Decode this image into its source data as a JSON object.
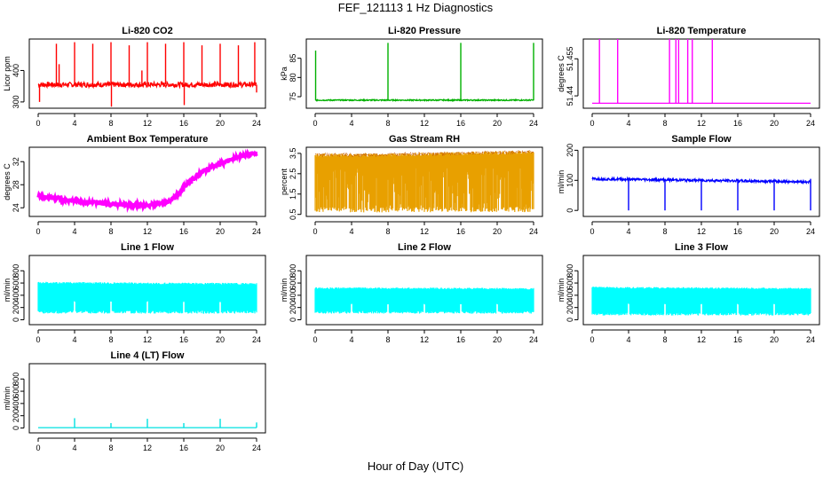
{
  "figure": {
    "title": "FEF_121113  1 Hz Diagnostics",
    "xlabel": "Hour of Day (UTC)"
  },
  "chart_data": [
    {
      "type": "line",
      "title": "Li-820 CO2",
      "ylabel": "Licor ppm",
      "color": "#ff0000",
      "xlim": [
        0,
        24
      ],
      "ylim": [
        280,
        500
      ],
      "xticks": [
        0,
        4,
        8,
        12,
        16,
        20,
        24
      ],
      "yticks": [
        300,
        400
      ],
      "baseline": 355,
      "noise": 8,
      "spikes": [
        {
          "x": 0.15,
          "y": 300
        },
        {
          "x": 2.0,
          "y": 485
        },
        {
          "x": 2.3,
          "y": 420
        },
        {
          "x": 4.0,
          "y": 490
        },
        {
          "x": 6.0,
          "y": 485
        },
        {
          "x": 8.0,
          "y": 490
        },
        {
          "x": 8.05,
          "y": 285
        },
        {
          "x": 10.0,
          "y": 480
        },
        {
          "x": 11.4,
          "y": 400
        },
        {
          "x": 12.0,
          "y": 490
        },
        {
          "x": 14.0,
          "y": 485
        },
        {
          "x": 16.0,
          "y": 490
        },
        {
          "x": 16.05,
          "y": 290
        },
        {
          "x": 18.0,
          "y": 480
        },
        {
          "x": 20.0,
          "y": 485
        },
        {
          "x": 22.0,
          "y": 480
        },
        {
          "x": 23.8,
          "y": 490
        },
        {
          "x": 24.0,
          "y": 330
        }
      ]
    },
    {
      "type": "line",
      "title": "Li-820 Pressure",
      "ylabel": "kPa",
      "color": "#00b000",
      "xlim": [
        0,
        24
      ],
      "ylim": [
        72,
        90
      ],
      "xticks": [
        0,
        4,
        8,
        12,
        16,
        20,
        24
      ],
      "yticks": [
        75,
        80,
        85
      ],
      "baseline": 74.1,
      "noise": 0.15,
      "spikes": [
        {
          "x": 0.05,
          "y": 87
        },
        {
          "x": 8.0,
          "y": 89
        },
        {
          "x": 16.0,
          "y": 89
        },
        {
          "x": 24.0,
          "y": 89
        }
      ]
    },
    {
      "type": "line",
      "title": "Li-820 Temperature",
      "ylabel": "degrees C",
      "color": "#ff00ff",
      "xlim": [
        0,
        24
      ],
      "ylim": [
        51.435,
        51.463
      ],
      "xticks": [
        0,
        4,
        8,
        12,
        16,
        20,
        24
      ],
      "yticks": [
        51.44,
        51.455
      ],
      "baseline": 51.437,
      "noise": 0,
      "spikes": [
        {
          "x": 0.8,
          "y": 51.463
        },
        {
          "x": 2.8,
          "y": 51.463
        },
        {
          "x": 8.5,
          "y": 51.463
        },
        {
          "x": 9.2,
          "y": 51.463
        },
        {
          "x": 9.5,
          "y": 51.463
        },
        {
          "x": 10.5,
          "y": 51.463
        },
        {
          "x": 11.0,
          "y": 51.463
        },
        {
          "x": 13.2,
          "y": 51.463
        }
      ]
    },
    {
      "type": "line",
      "title": "Ambient Box Temperature",
      "ylabel": "degrees C",
      "color": "#ff00ff",
      "xlim": [
        0,
        24
      ],
      "ylim": [
        22.5,
        34.5
      ],
      "xticks": [
        0,
        4,
        8,
        12,
        16,
        20,
        24
      ],
      "yticks": [
        24,
        28,
        32
      ],
      "noise": 0.35,
      "points": [
        [
          0,
          26.0
        ],
        [
          2,
          25.6
        ],
        [
          4,
          25.2
        ],
        [
          6,
          24.9
        ],
        [
          8,
          24.7
        ],
        [
          10,
          24.5
        ],
        [
          12,
          24.4
        ],
        [
          14,
          24.8
        ],
        [
          15,
          25.8
        ],
        [
          16,
          27.5
        ],
        [
          17,
          29.0
        ],
        [
          18,
          30.2
        ],
        [
          19,
          31.0
        ],
        [
          20,
          31.6
        ],
        [
          21,
          32.2
        ],
        [
          22,
          32.8
        ],
        [
          23,
          33.2
        ],
        [
          24,
          33.4
        ]
      ]
    },
    {
      "type": "band",
      "title": "Gas Stream RH",
      "ylabel": "percent",
      "color": "#e8a000",
      "edge_color": "#c05000",
      "xlim": [
        0,
        24
      ],
      "ylim": [
        0.4,
        3.8
      ],
      "xticks": [
        0,
        4,
        8,
        12,
        16,
        20,
        24
      ],
      "yticks": [
        0.5,
        1.5,
        2.5,
        3.5
      ],
      "upper": [
        [
          0,
          3.5
        ],
        [
          6,
          3.5
        ],
        [
          12,
          3.55
        ],
        [
          18,
          3.6
        ],
        [
          24,
          3.65
        ]
      ],
      "lower": 0.6
    },
    {
      "type": "line",
      "title": "Sample Flow",
      "ylabel": "ml/min",
      "color": "#0000ff",
      "xlim": [
        0,
        24
      ],
      "ylim": [
        -20,
        210
      ],
      "xticks": [
        0,
        4,
        8,
        12,
        16,
        20,
        24
      ],
      "yticks": [
        0,
        100,
        200
      ],
      "baseline": 105,
      "noise": 4,
      "drift_end": 95,
      "spikes": [
        {
          "x": 4.0,
          "y": 0
        },
        {
          "x": 8.0,
          "y": 0
        },
        {
          "x": 12.0,
          "y": 0
        },
        {
          "x": 16.0,
          "y": 0
        },
        {
          "x": 20.0,
          "y": 0
        },
        {
          "x": 24.0,
          "y": 0
        }
      ]
    },
    {
      "type": "band",
      "title": "Line 1 Flow",
      "ylabel": "ml/min",
      "color": "#00ffff",
      "xlim": [
        0,
        24
      ],
      "ylim": [
        -80,
        1050
      ],
      "xticks": [
        0,
        4,
        8,
        12,
        16,
        20,
        24
      ],
      "yticks": [
        0,
        200,
        400,
        600,
        800
      ],
      "upper": [
        [
          0,
          620
        ],
        [
          24,
          600
        ]
      ],
      "lower": 100,
      "gaps": [
        4,
        8,
        12,
        16,
        20
      ]
    },
    {
      "type": "band",
      "title": "Line 2 Flow",
      "ylabel": "ml/min",
      "color": "#00ffff",
      "xlim": [
        0,
        24
      ],
      "ylim": [
        -80,
        1050
      ],
      "xticks": [
        0,
        4,
        8,
        12,
        16,
        20,
        24
      ],
      "yticks": [
        0,
        200,
        400,
        600,
        800
      ],
      "upper": [
        [
          0,
          530
        ],
        [
          24,
          520
        ]
      ],
      "lower": 100,
      "gaps": [
        4,
        8,
        12,
        16,
        20
      ]
    },
    {
      "type": "band",
      "title": "Line 3 Flow",
      "ylabel": "ml/min",
      "color": "#00ffff",
      "xlim": [
        0,
        24
      ],
      "ylim": [
        -80,
        1050
      ],
      "xticks": [
        0,
        4,
        8,
        12,
        16,
        20,
        24
      ],
      "yticks": [
        0,
        200,
        400,
        600,
        800
      ],
      "upper": [
        [
          0,
          540
        ],
        [
          24,
          520
        ]
      ],
      "lower": 70,
      "gaps": [
        4,
        8,
        12,
        16,
        20
      ]
    },
    {
      "type": "line",
      "title": "Line 4 (LT) Flow",
      "ylabel": "ml/min",
      "color": "#00e0e0",
      "xlim": [
        0,
        24
      ],
      "ylim": [
        -80,
        1050
      ],
      "xticks": [
        0,
        4,
        8,
        12,
        16,
        20,
        24
      ],
      "yticks": [
        0,
        200,
        400,
        600,
        800
      ],
      "baseline": 5,
      "noise": 0,
      "spikes": [
        {
          "x": 4.0,
          "y": 160
        },
        {
          "x": 8.0,
          "y": 80
        },
        {
          "x": 12.0,
          "y": 150
        },
        {
          "x": 16.0,
          "y": 80
        },
        {
          "x": 20.0,
          "y": 150
        },
        {
          "x": 24.0,
          "y": 90
        }
      ]
    }
  ]
}
